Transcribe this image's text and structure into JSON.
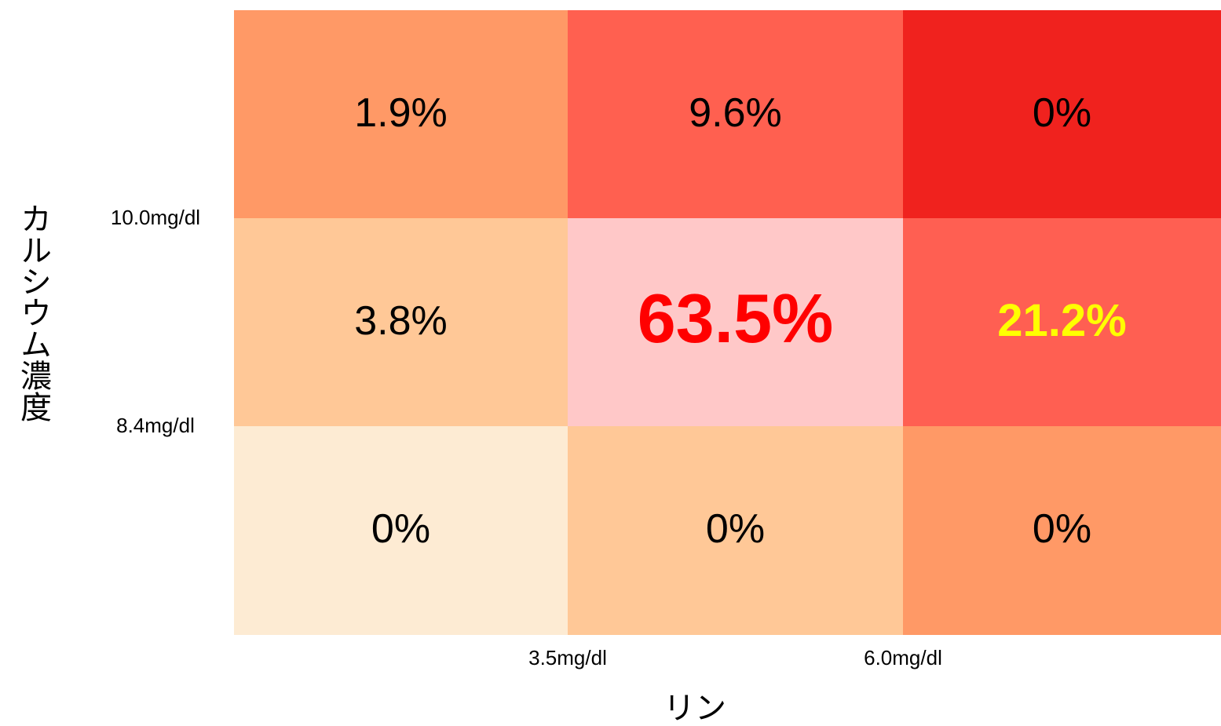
{
  "chart_data": {
    "type": "heatmap",
    "xlabel": "リン",
    "ylabel": "カルシウム濃度",
    "x_boundaries": [
      "3.5mg/dl",
      "6.0mg/dl"
    ],
    "y_boundaries": [
      "10.0mg/dl",
      "8.4mg/dl"
    ],
    "values": [
      [
        1.9,
        9.6,
        0
      ],
      [
        3.8,
        63.5,
        21.2
      ],
      [
        0,
        0,
        0
      ]
    ],
    "value_labels": [
      [
        "1.9%",
        "9.6%",
        "0%"
      ],
      [
        "3.8%",
        "63.5%",
        "21.2%"
      ],
      [
        "0%",
        "0%",
        "0%"
      ]
    ],
    "colors": [
      [
        "#ff9966",
        "#ff6050",
        "#f0221e"
      ],
      [
        "#ffc897",
        "#ffc8c8",
        "#ff5f52"
      ],
      [
        "#fdebd3",
        "#ffc897",
        "#ff9966"
      ]
    ],
    "label_colors": [
      [
        "#000000",
        "#000000",
        "#000000"
      ],
      [
        "#000000",
        "#ff0000",
        "#ffff00"
      ],
      [
        "#000000",
        "#000000",
        "#000000"
      ]
    ]
  }
}
